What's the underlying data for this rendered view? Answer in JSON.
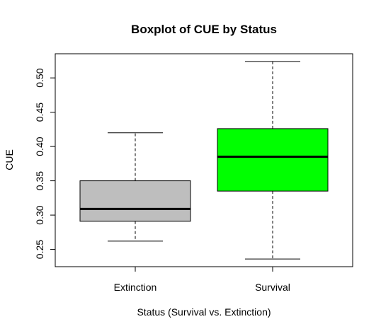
{
  "chart_data": {
    "type": "boxplot",
    "title": "Boxplot of CUE by Status",
    "xlabel": "Status (Survival vs. Extinction)",
    "ylabel": "CUE",
    "categories": [
      "Extinction",
      "Survival"
    ],
    "boxes": [
      {
        "category": "Extinction",
        "whisker_low": 0.262,
        "q1": 0.291,
        "median": 0.309,
        "q3": 0.35,
        "whisker_high": 0.42,
        "color": "#bebebe"
      },
      {
        "category": "Survival",
        "whisker_low": 0.236,
        "q1": 0.335,
        "median": 0.385,
        "q3": 0.426,
        "whisker_high": 0.524,
        "color": "#00ff00"
      }
    ],
    "yticks": [
      0.25,
      0.3,
      0.35,
      0.4,
      0.45,
      0.5
    ],
    "ytick_labels": [
      "0.25",
      "0.30",
      "0.35",
      "0.40",
      "0.45",
      "0.50"
    ],
    "ylim": [
      0.2248,
      0.5352
    ],
    "grid": false,
    "legend": "none"
  }
}
